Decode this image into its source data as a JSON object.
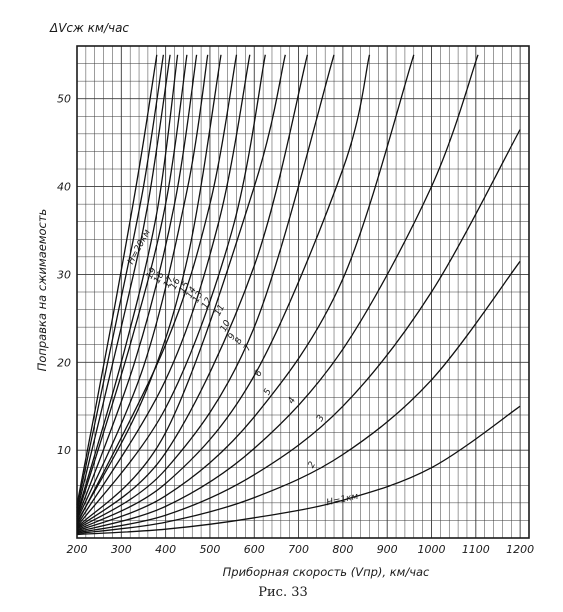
{
  "chart_data": {
    "type": "line",
    "title": "",
    "ylabel_top": "ΔVсж км/час",
    "ylabel": "Поправка на сжимаемость",
    "xlabel": "Приборная скорость (Vпр), км/час",
    "caption": "Рис. 33",
    "xlim": [
      200,
      1220
    ],
    "ylim": [
      0,
      56
    ],
    "grid": true,
    "x_ticks": [
      200,
      300,
      400,
      500,
      600,
      700,
      800,
      900,
      1000,
      1100,
      1200
    ],
    "x_tick_labels": [
      "200",
      "300",
      "400",
      "500",
      "600",
      "700",
      "800",
      "900",
      "1000",
      "1100",
      "1200"
    ],
    "y_ticks": [
      10,
      20,
      30,
      40,
      50
    ],
    "y_tick_labels": [
      "10",
      "20",
      "30",
      "40",
      "50"
    ],
    "series": [
      {
        "name": "H=1км",
        "x": [
          200,
          400,
          600,
          800,
          1000,
          1200
        ],
        "y": [
          0.4,
          1.0,
          2.3,
          4.3,
          8.0,
          15.0
        ]
      },
      {
        "name": "2",
        "x": [
          200,
          400,
          600,
          800,
          1000,
          1200
        ],
        "y": [
          0.5,
          1.8,
          4.6,
          9.5,
          18.0,
          31.5
        ]
      },
      {
        "name": "3",
        "x": [
          200,
          400,
          600,
          800,
          1000,
          1200
        ],
        "y": [
          0.6,
          2.6,
          7.2,
          15.0,
          28.0,
          46.5
        ]
      },
      {
        "name": "4",
        "x": [
          200,
          400,
          600,
          800,
          1000,
          1105
        ],
        "y": [
          0.7,
          3.6,
          10.2,
          21.5,
          40.0,
          55.0
        ]
      },
      {
        "name": "5",
        "x": [
          200,
          400,
          600,
          800,
          960
        ],
        "y": [
          0.8,
          4.8,
          13.8,
          29.5,
          55.0
        ]
      },
      {
        "name": "6",
        "x": [
          200,
          400,
          600,
          800,
          860
        ],
        "y": [
          0.9,
          6.2,
          18.5,
          42.0,
          55.0
        ]
      },
      {
        "name": "7",
        "x": [
          200,
          400,
          600,
          780
        ],
        "y": [
          1.0,
          7.8,
          24.0,
          55.0
        ]
      },
      {
        "name": "8",
        "x": [
          200,
          400,
          600,
          720
        ],
        "y": [
          1.1,
          9.7,
          31.0,
          55.0
        ]
      },
      {
        "name": "9",
        "x": [
          200,
          400,
          600,
          670
        ],
        "y": [
          1.2,
          12.0,
          40.0,
          55.0
        ]
      },
      {
        "name": "10",
        "x": [
          200,
          400,
          550,
          625
        ],
        "y": [
          1.3,
          14.8,
          35.0,
          55.0
        ]
      },
      {
        "name": "11",
        "x": [
          200,
          400,
          520,
          590
        ],
        "y": [
          1.45,
          18.0,
          36.0,
          55.0
        ]
      },
      {
        "name": "12",
        "x": [
          200,
          400,
          500,
          560
        ],
        "y": [
          1.6,
          22.0,
          38.0,
          55.0
        ]
      },
      {
        "name": "13",
        "x": [
          200,
          350,
          450,
          525
        ],
        "y": [
          1.8,
          16.0,
          32.0,
          55.0
        ]
      },
      {
        "name": "14",
        "x": [
          200,
          350,
          450,
          495
        ],
        "y": [
          2.0,
          19.5,
          40.0,
          55.0
        ]
      },
      {
        "name": "15",
        "x": [
          200,
          330,
          420,
          470
        ],
        "y": [
          2.2,
          20.0,
          38.0,
          55.0
        ]
      },
      {
        "name": "16",
        "x": [
          200,
          320,
          400,
          448
        ],
        "y": [
          2.4,
          22.0,
          38.0,
          55.0
        ]
      },
      {
        "name": "17",
        "x": [
          200,
          300,
          380,
          427
        ],
        "y": [
          2.7,
          20.0,
          37.0,
          55.0
        ]
      },
      {
        "name": "18",
        "x": [
          200,
          300,
          360,
          410
        ],
        "y": [
          3.0,
          24.0,
          38.0,
          55.0
        ]
      },
      {
        "name": "19",
        "x": [
          200,
          290,
          350,
          395
        ],
        "y": [
          3.4,
          25.0,
          40.0,
          55.0
        ]
      },
      {
        "name": "H=20км",
        "x": [
          200,
          280,
          340,
          380
        ],
        "y": [
          3.8,
          25.0,
          42.0,
          55.0
        ]
      }
    ],
    "curve_labels": [
      {
        "text": "H=1км",
        "x": 800,
        "y": 4.1
      },
      {
        "text": "2",
        "x": 735,
        "y": 8.2
      },
      {
        "text": "3",
        "x": 755,
        "y": 13.5
      },
      {
        "text": "4",
        "x": 690,
        "y": 15.5
      },
      {
        "text": "5",
        "x": 635,
        "y": 16.5
      },
      {
        "text": "6",
        "x": 615,
        "y": 18.6
      },
      {
        "text": "7",
        "x": 590,
        "y": 21.5
      },
      {
        "text": "8",
        "x": 570,
        "y": 22.3
      },
      {
        "text": "9",
        "x": 555,
        "y": 22.8
      },
      {
        "text": "10",
        "x": 540,
        "y": 24.0
      },
      {
        "text": "11",
        "x": 527,
        "y": 25.8
      },
      {
        "text": "12",
        "x": 498,
        "y": 26.6
      },
      {
        "text": "13",
        "x": 478,
        "y": 27.3
      },
      {
        "text": "14",
        "x": 463,
        "y": 27.8
      },
      {
        "text": "15",
        "x": 447,
        "y": 28.4
      },
      {
        "text": "16",
        "x": 427,
        "y": 28.8
      },
      {
        "text": "17",
        "x": 412,
        "y": 29.0
      },
      {
        "text": "18",
        "x": 390,
        "y": 29.5
      },
      {
        "text": "19",
        "x": 373,
        "y": 30.0
      },
      {
        "text": "H=20км",
        "x": 345,
        "y": 33.0
      }
    ]
  }
}
